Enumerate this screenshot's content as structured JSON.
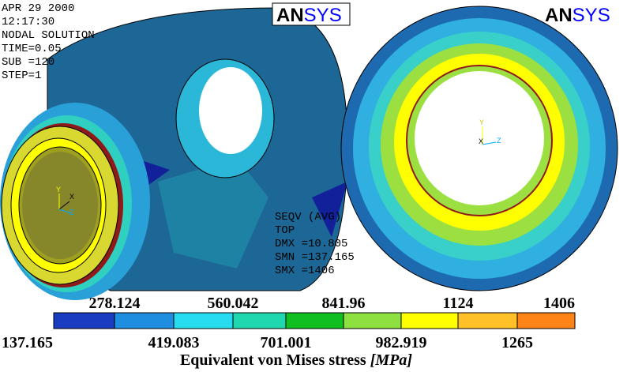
{
  "header": {
    "lines": [
      "APR 29 2000",
      "12:17:30",
      "NODAL SOLUTION",
      "TIME=0.05",
      "SUB =120",
      "STEP=1"
    ]
  },
  "logos": {
    "left": {
      "bold": "AN",
      "rest": "SYS"
    },
    "right": {
      "bold": "AN",
      "rest": "SYS"
    }
  },
  "info": {
    "lines": [
      "SEQV  (AVG)",
      "TOP",
      "DMX =10.805",
      "SMN =137.165",
      "SMX =1406"
    ]
  },
  "triads": {
    "left": [
      "Y",
      "X",
      "Z"
    ],
    "right": [
      "Y",
      "X",
      "Z"
    ]
  },
  "legend": {
    "upper": [
      "278.124",
      "560.042",
      "841.96",
      "1124",
      "1406"
    ],
    "lower": [
      "137.165",
      "419.083",
      "701.001",
      "982.919",
      "1265"
    ],
    "caption": "Equivalent von Mises stress",
    "unit": "[MPa]"
  }
}
